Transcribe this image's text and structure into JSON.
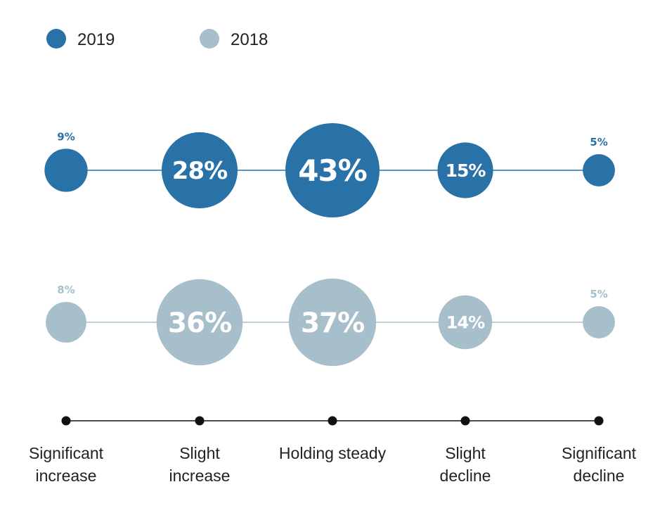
{
  "chart_data": {
    "type": "bubble",
    "legend_position": "top-left",
    "categories": [
      [
        "Significant",
        "increase"
      ],
      [
        "Slight",
        "increase"
      ],
      [
        "Holding steady"
      ],
      [
        "Slight",
        "decline"
      ],
      [
        "Significant",
        "decline"
      ]
    ],
    "series": [
      {
        "name": "2019",
        "color": "#2872a8",
        "line_color": "#2872a8",
        "values": [
          9,
          28,
          43,
          15,
          5
        ]
      },
      {
        "name": "2018",
        "color": "#a7bfca",
        "line_color": "#a7bfca",
        "values": [
          8,
          36,
          37,
          14,
          5
        ]
      }
    ],
    "value_suffix": "%",
    "axis_color": "#111111"
  }
}
